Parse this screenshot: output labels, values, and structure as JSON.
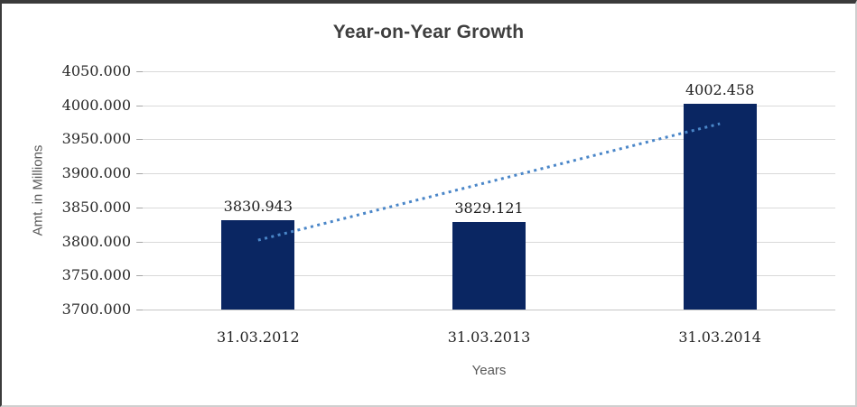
{
  "chart_data": {
    "type": "bar",
    "title": "Year-on-Year Growth",
    "xlabel": "Years",
    "ylabel": "Amt. in Millions",
    "categories": [
      "31.03.2012",
      "31.03.2013",
      "31.03.2014"
    ],
    "values": [
      3830.943,
      3829.121,
      4002.458
    ],
    "data_labels": [
      "3830.943",
      "3829.121",
      "4002.458"
    ],
    "ylim": [
      3700,
      4050
    ],
    "ytick_step": 50,
    "ytick_labels": [
      "4050.000",
      "4000.000",
      "3950.000",
      "3900.000",
      "3850.000",
      "3800.000",
      "3750.000",
      "3700.000"
    ],
    "grid": true,
    "legend_position": "none",
    "bar_color": "#0a2662",
    "trendline": {
      "style": "dotted",
      "color": "#4a86c8",
      "start_value": 3802,
      "end_value": 3973
    }
  }
}
